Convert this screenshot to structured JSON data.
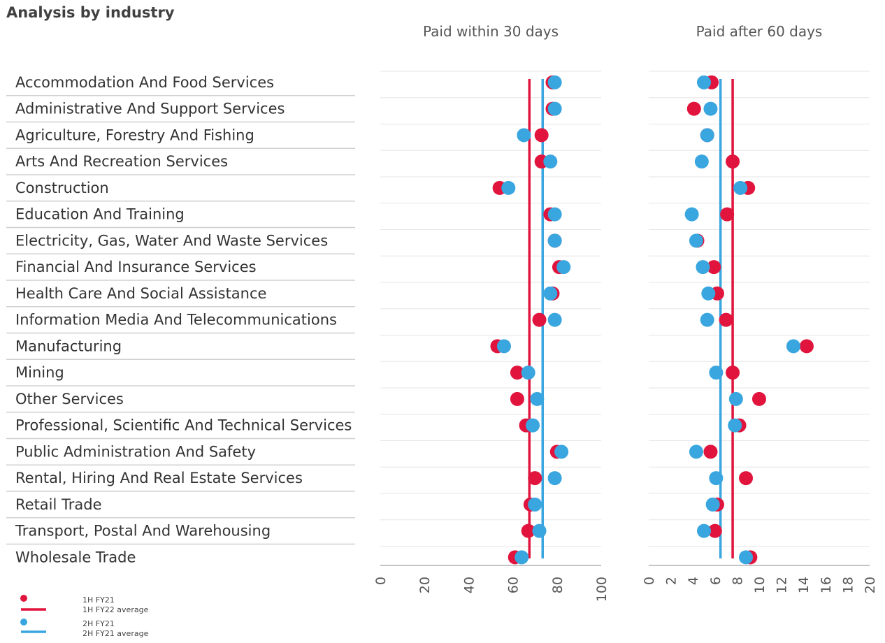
{
  "page": {
    "title": "Analysis by industry"
  },
  "colors": {
    "series1": "#E0143C",
    "series2": "#3AA6E0",
    "grid": "#e6e6e6",
    "axis": "#b0b0b0",
    "divider": "#d0d0d0"
  },
  "legend": {
    "items": [
      {
        "label": "1H FY21",
        "marker": "dot",
        "color": "#E0143C"
      },
      {
        "label": "1H FY22 average",
        "marker": "line",
        "color": "#E0143C"
      },
      {
        "label": "2H FY21",
        "marker": "dot",
        "color": "#3AA6E0"
      },
      {
        "label": "2H FY21 average",
        "marker": "line",
        "color": "#3AA6E0"
      }
    ]
  },
  "chart_data": [
    {
      "type": "scatter",
      "title": "Paid within 30 days",
      "xlim": [
        0,
        100
      ],
      "xticks": [
        0,
        20,
        40,
        60,
        80,
        100
      ],
      "grid": true,
      "categories": [
        "Accommodation And Food Services",
        "Administrative And Support Services",
        "Agriculture, Forestry And Fishing",
        "Arts And Recreation Services",
        "Construction",
        "Education And Training",
        "Electricity, Gas, Water And Waste Services",
        "Financial And Insurance Services",
        "Health Care And Social Assistance",
        "Information Media And Telecommunications",
        "Manufacturing",
        "Mining",
        "Other Services",
        "Professional, Scientific And Technical Services",
        "Public Administration And Safety",
        "Rental, Hiring And Real Estate Services",
        "Retail Trade",
        "Transport, Postal And Warehousing",
        "Wholesale Trade"
      ],
      "series": [
        {
          "name": "1H FY21",
          "values": [
            78,
            78,
            73,
            73,
            54,
            77,
            79,
            81,
            78,
            72,
            53,
            62,
            62,
            66,
            80,
            70,
            68,
            67,
            61
          ]
        },
        {
          "name": "2H FY21",
          "values": [
            79,
            79,
            65,
            77,
            58,
            79,
            79,
            83,
            77,
            79,
            56,
            67,
            71,
            69,
            82,
            79,
            70,
            72,
            64
          ]
        }
      ],
      "averages": [
        {
          "name": "1H FY22 average",
          "value": 67.5
        },
        {
          "name": "2H FY21 average",
          "value": 73.5
        }
      ]
    },
    {
      "type": "scatter",
      "title": "Paid after 60 days",
      "xlim": [
        0,
        20
      ],
      "xticks": [
        0,
        2,
        4,
        6,
        8,
        10,
        12,
        14,
        16,
        18,
        20
      ],
      "grid": true,
      "categories": [
        "Accommodation And Food Services",
        "Administrative And Support Services",
        "Agriculture, Forestry And Fishing",
        "Arts And Recreation Services",
        "Construction",
        "Education And Training",
        "Electricity, Gas, Water And Waste Services",
        "Financial And Insurance Services",
        "Health Care And Social Assistance",
        "Information Media And Telecommunications",
        "Manufacturing",
        "Mining",
        "Other Services",
        "Professional, Scientific And Technical Services",
        "Public Administration And Safety",
        "Rental, Hiring And Real Estate Services",
        "Retail Trade",
        "Transport, Postal And Warehousing",
        "Wholesale Trade"
      ],
      "series": [
        {
          "name": "1H FY21",
          "values": [
            5.7,
            4.1,
            5.3,
            7.6,
            9.0,
            7.1,
            4.4,
            5.9,
            6.2,
            7.0,
            14.3,
            7.6,
            10.0,
            8.2,
            5.6,
            8.8,
            6.2,
            6.0,
            9.2
          ]
        },
        {
          "name": "2H FY21",
          "values": [
            5.0,
            5.6,
            5.3,
            4.8,
            8.3,
            3.9,
            4.3,
            4.9,
            5.4,
            5.3,
            13.1,
            6.1,
            7.9,
            7.8,
            4.3,
            6.1,
            5.8,
            5.0,
            8.8
          ]
        }
      ],
      "averages": [
        {
          "name": "1H FY22 average",
          "value": 7.6
        },
        {
          "name": "2H FY21 average",
          "value": 6.5
        }
      ]
    }
  ]
}
